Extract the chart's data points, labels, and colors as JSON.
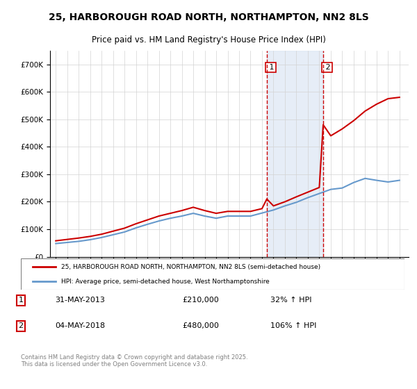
{
  "title1": "25, HARBOROUGH ROAD NORTH, NORTHAMPTON, NN2 8LS",
  "title2": "Price paid vs. HM Land Registry's House Price Index (HPI)",
  "ylabel_ticks": [
    "£0",
    "£100K",
    "£200K",
    "£300K",
    "£400K",
    "£500K",
    "£600K",
    "£700K"
  ],
  "ytick_values": [
    0,
    100000,
    200000,
    300000,
    400000,
    500000,
    600000,
    700000
  ],
  "ylim": [
    0,
    750000
  ],
  "red_color": "#cc0000",
  "blue_color": "#6699cc",
  "bg_shading_color": "#dce6f5",
  "marker1_date": 2013.42,
  "marker2_date": 2018.34,
  "marker1_price": 210000,
  "marker2_price": 480000,
  "legend_line1": "25, HARBOROUGH ROAD NORTH, NORTHAMPTON, NN2 8LS (semi-detached house)",
  "legend_line2": "HPI: Average price, semi-detached house, West Northamptonshire",
  "note1_label": "1",
  "note1_date": "31-MAY-2013",
  "note1_price": "£210,000",
  "note1_hpi": "32% ↑ HPI",
  "note2_label": "2",
  "note2_date": "04-MAY-2018",
  "note2_price": "£480,000",
  "note2_hpi": "106% ↑ HPI",
  "footer": "Contains HM Land Registry data © Crown copyright and database right 2025.\nThis data is licensed under the Open Government Licence v3.0.",
  "hpi_years": [
    1995,
    1996,
    1997,
    1998,
    1999,
    2000,
    2001,
    2002,
    2003,
    2004,
    2005,
    2006,
    2007,
    2008,
    2009,
    2010,
    2011,
    2012,
    2013,
    2014,
    2015,
    2016,
    2017,
    2018,
    2019,
    2020,
    2021,
    2022,
    2023,
    2024,
    2025
  ],
  "hpi_values": [
    48000,
    52000,
    56000,
    62000,
    70000,
    80000,
    90000,
    105000,
    118000,
    130000,
    140000,
    148000,
    158000,
    148000,
    140000,
    148000,
    148000,
    148000,
    159000,
    170000,
    185000,
    198000,
    215000,
    230000,
    245000,
    250000,
    270000,
    285000,
    278000,
    272000,
    278000
  ],
  "red_years": [
    1995,
    1996,
    1997,
    1998,
    1999,
    2000,
    2001,
    2002,
    2003,
    2004,
    2005,
    2006,
    2007,
    2008,
    2009,
    2010,
    2011,
    2012,
    2013,
    2013.42,
    2014,
    2015,
    2016,
    2017,
    2018,
    2018.34,
    2019,
    2020,
    2021,
    2022,
    2023,
    2024,
    2025
  ],
  "red_values": [
    58000,
    63000,
    68000,
    74000,
    82000,
    93000,
    104000,
    120000,
    134000,
    148000,
    158000,
    168000,
    180000,
    168000,
    158000,
    165000,
    165000,
    165000,
    175000,
    210000,
    185000,
    200000,
    218000,
    235000,
    252000,
    480000,
    440000,
    465000,
    495000,
    530000,
    555000,
    575000,
    580000
  ]
}
